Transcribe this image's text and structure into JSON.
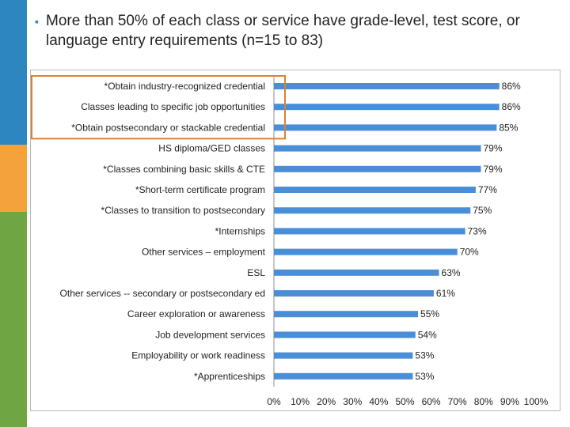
{
  "slide": {
    "bullet": "▪",
    "headline": "More than 50% of each class or service have grade-level, test score, or language entry requirements (n=15 to 83)"
  },
  "colors": {
    "bar": "#4a8ed8",
    "highlight_box": "#d98236",
    "strip_top": "#2e86c1",
    "strip_middle": "#f4a23c",
    "strip_bottom": "#6fa543"
  },
  "chart_data": {
    "type": "bar",
    "orientation": "horizontal",
    "categories": [
      "*Obtain industry-recognized credential",
      "Classes leading to specific job opportunities",
      "*Obtain postsecondary or stackable credential",
      "HS diploma/GED  classes",
      "*Classes combining basic skills & CTE",
      "*Short-term certificate program",
      "*Classes to transition to postsecondary",
      "*Internships",
      "Other services – employment",
      "ESL",
      "Other services -- secondary or postsecondary ed",
      "Career exploration or awareness",
      "Job development services",
      "Employability or work readiness",
      "*Apprenticeships"
    ],
    "values": [
      86,
      86,
      85,
      79,
      79,
      77,
      75,
      73,
      70,
      63,
      61,
      55,
      54,
      53,
      53
    ],
    "value_labels": [
      "86%",
      "86%",
      "85%",
      "79%",
      "79%",
      "77%",
      "75%",
      "73%",
      "70%",
      "63%",
      "61%",
      "55%",
      "54%",
      "53%",
      "53%"
    ],
    "x_ticks": [
      "0%",
      "10%",
      "20%",
      "30%",
      "40%",
      "50%",
      "60%",
      "70%",
      "80%",
      "90%",
      "100%"
    ],
    "xlim": [
      0,
      100
    ],
    "grid": false,
    "legend": "none",
    "highlighted_categories": [
      0,
      1,
      2
    ]
  }
}
